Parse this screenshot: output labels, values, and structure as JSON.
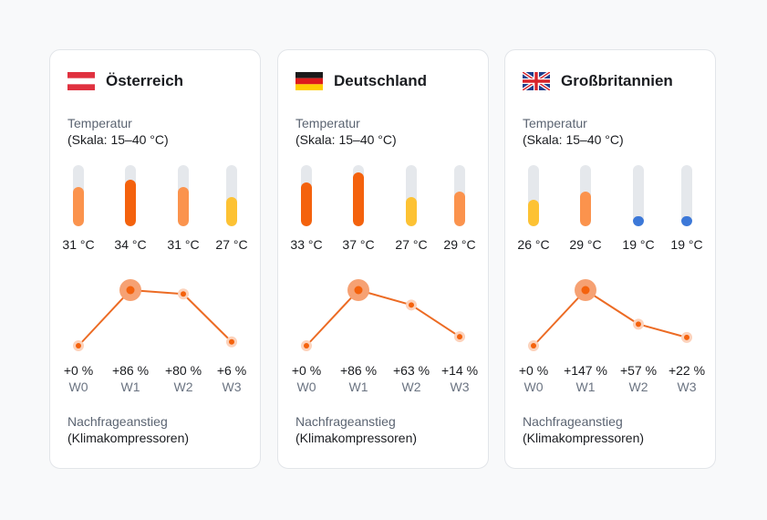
{
  "labels": {
    "temp_title": "Temperatur",
    "temp_scale": "(Skala: 15–40 °C)",
    "demand_title": "Nachfrageanstieg",
    "demand_sub": "(Klimakompressoren)"
  },
  "scale": {
    "min": 15,
    "max": 40
  },
  "colors": {
    "yellow": "#fdc233",
    "orange_light": "#fb934d",
    "orange_dark": "#f4620d",
    "blue": "#3c78d8",
    "line": "#ec6b24",
    "track": "#e5e8ec"
  },
  "chart_data": [
    {
      "type": "line",
      "country": "Österreich",
      "flag": "austria-flag",
      "temperatures": [
        31,
        34,
        31,
        27
      ],
      "temp_labels": [
        "31 °C",
        "34 °C",
        "31 °C",
        "27 °C"
      ],
      "x": [
        "W0",
        "W1",
        "W2",
        "W3"
      ],
      "values": [
        0,
        86,
        80,
        6
      ],
      "value_labels": [
        "+0 %",
        "+86 %",
        "+80 %",
        "+6 %"
      ],
      "highlight_index": 1
    },
    {
      "type": "line",
      "country": "Deutschland",
      "flag": "germany-flag",
      "temperatures": [
        33,
        37,
        27,
        29
      ],
      "temp_labels": [
        "33 °C",
        "37 °C",
        "27 °C",
        "29 °C"
      ],
      "x": [
        "W0",
        "W1",
        "W2",
        "W3"
      ],
      "values": [
        0,
        86,
        63,
        14
      ],
      "value_labels": [
        "+0 %",
        "+86 %",
        "+63 %",
        "+14 %"
      ],
      "highlight_index": 1
    },
    {
      "type": "line",
      "country": "Großbritannien",
      "flag": "uk-flag",
      "temperatures": [
        26,
        29,
        19,
        19
      ],
      "temp_labels": [
        "26 °C",
        "29 °C",
        "19 °C",
        "19 °C"
      ],
      "x": [
        "W0",
        "W1",
        "W2",
        "W3"
      ],
      "values": [
        0,
        147,
        57,
        22
      ],
      "value_labels": [
        "+0 %",
        "+147 %",
        "+57 %",
        "+22 %"
      ],
      "highlight_index": 1
    }
  ]
}
